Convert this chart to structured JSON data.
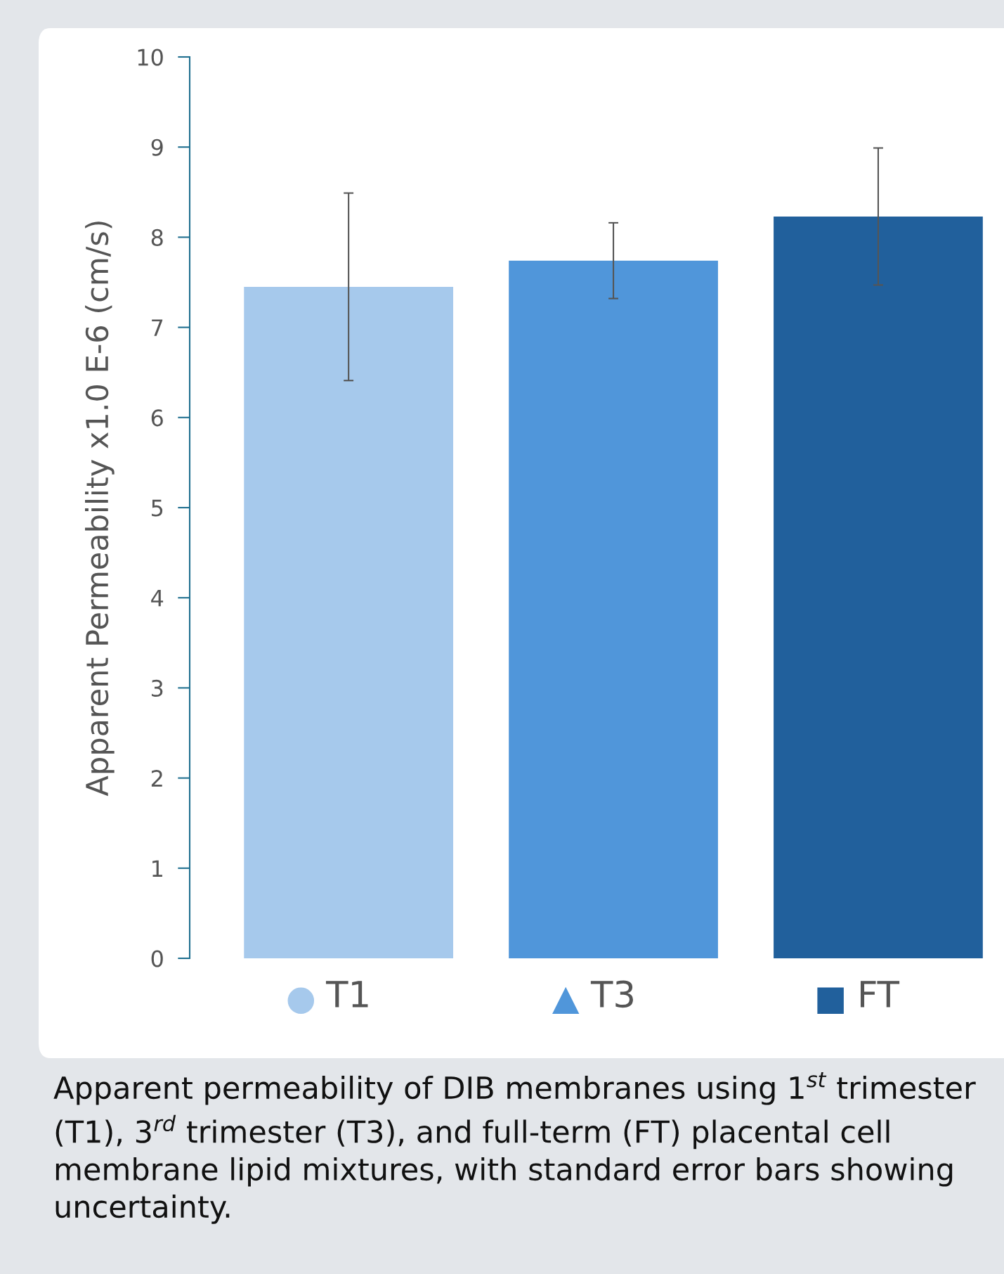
{
  "chart_data": {
    "type": "bar",
    "ylabel": "Apparent Permeability x1.0 E-6 (cm/s)",
    "categories": [
      "T1",
      "T3",
      "FT"
    ],
    "values": [
      7.45,
      7.74,
      8.23
    ],
    "colors": [
      "#a6c9ec",
      "#5096da",
      "#21609c"
    ],
    "errors": [
      1.04,
      0.42,
      0.76
    ],
    "ylim": [
      0,
      10
    ],
    "yticks": [
      0,
      1,
      2,
      3,
      4,
      5,
      6,
      7,
      8,
      9,
      10
    ],
    "grid": false,
    "annotations": [
      "Apparent permeability of DIB membranes using 1$^{st}$ trimester (T1), 3$^{rd}$ trimester (T3), and full-term (FT) placental cell membrane lipid mixtures, with standard error bars showing uncertainty."
    ]
  }
}
